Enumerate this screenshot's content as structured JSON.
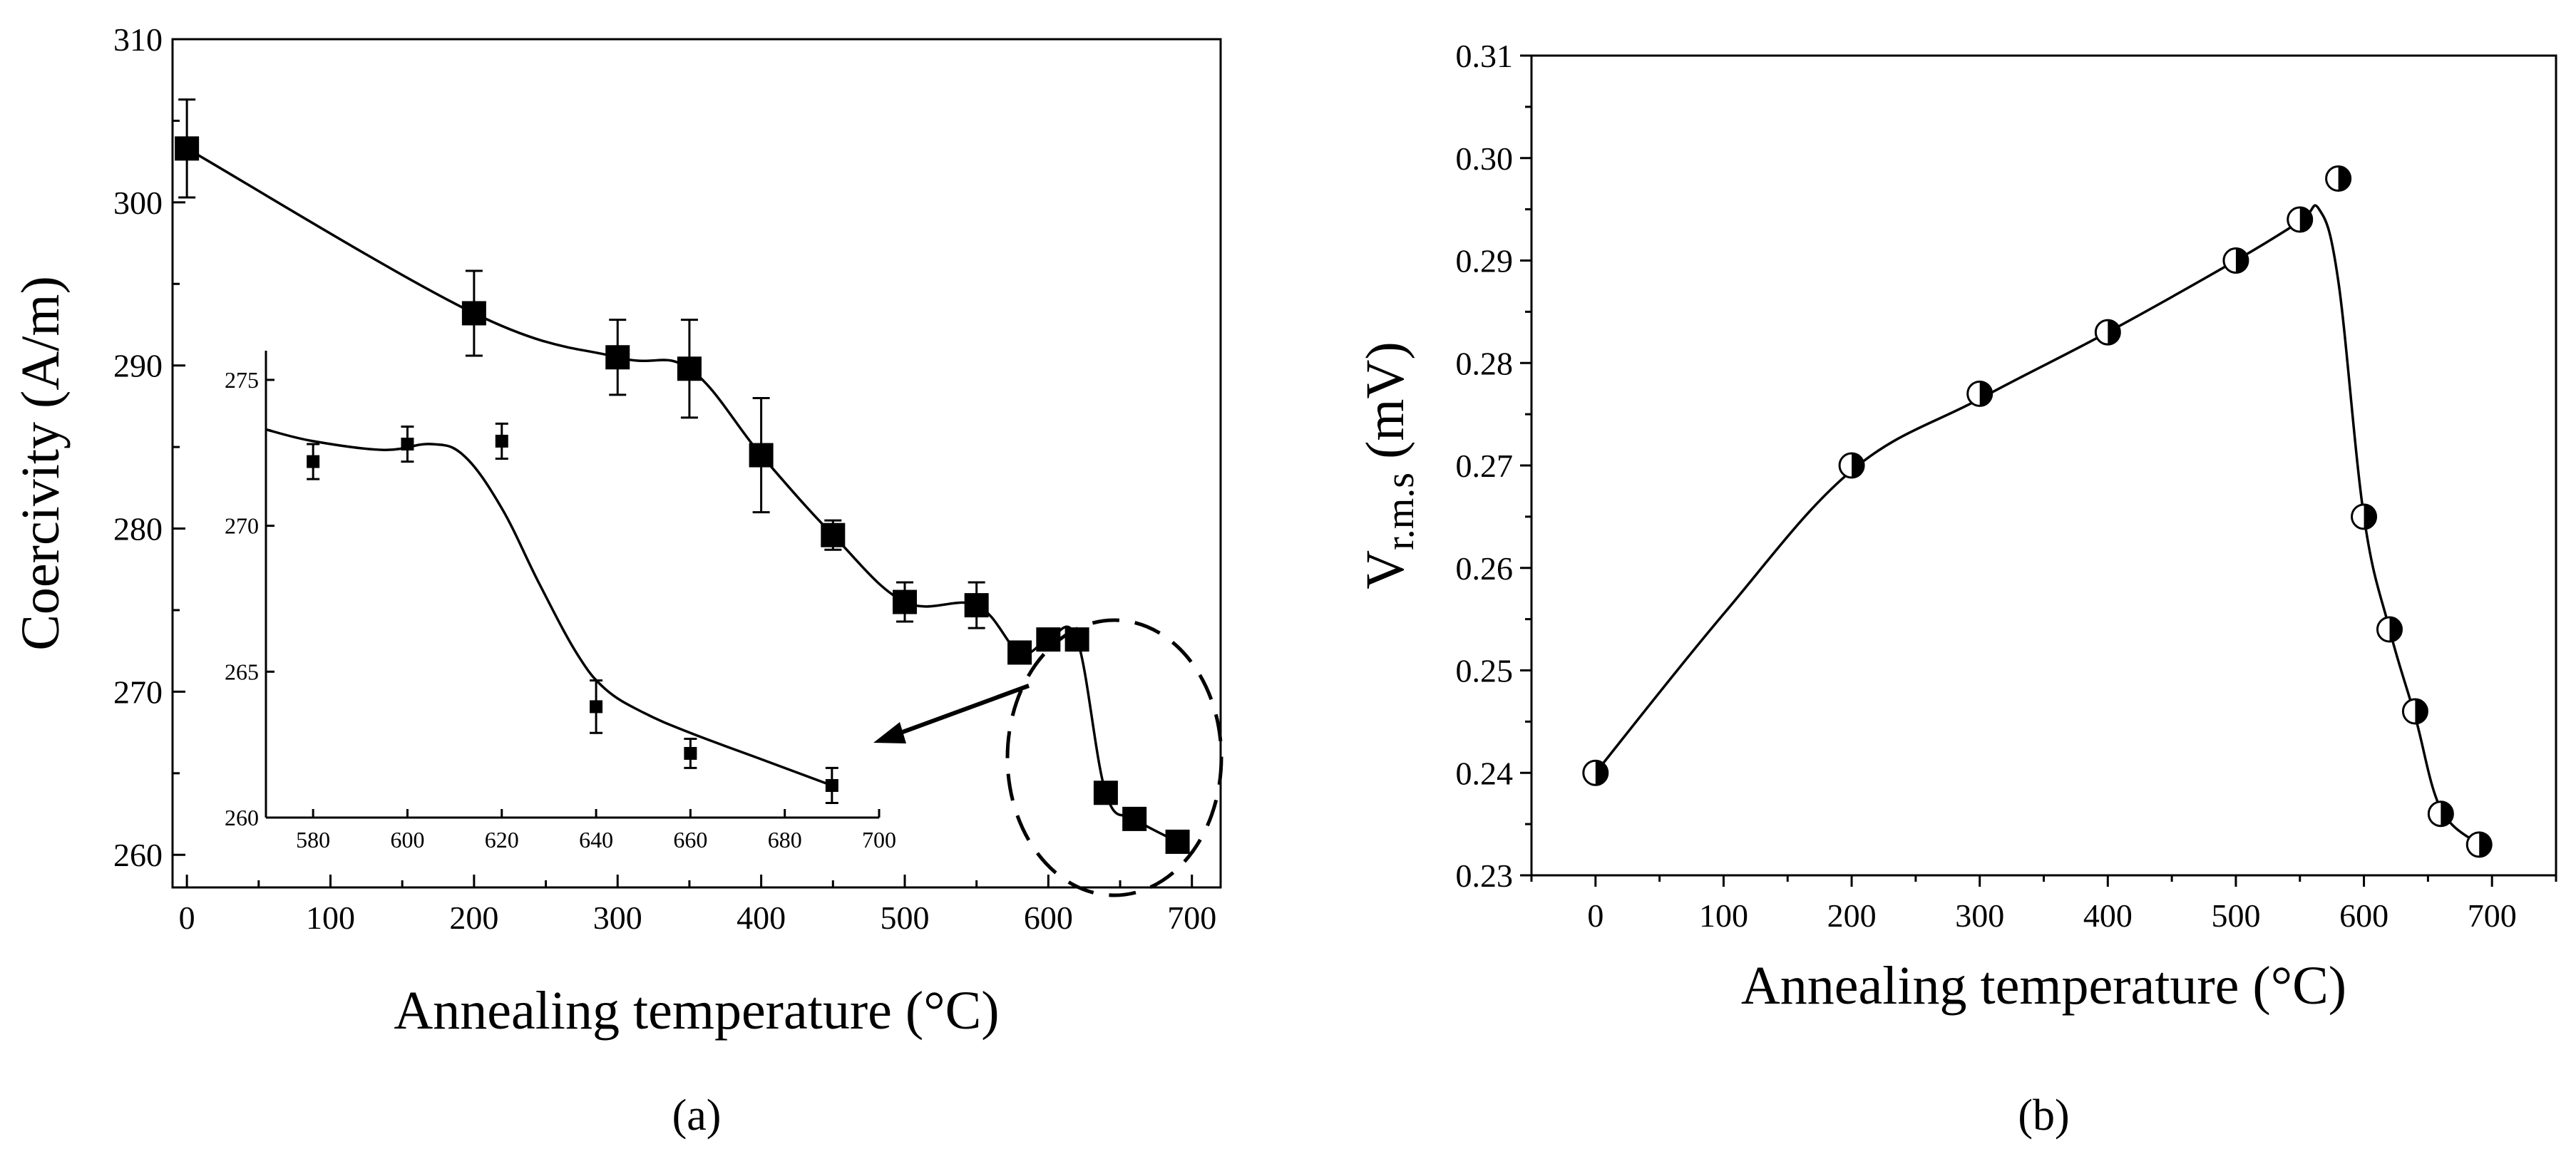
{
  "chart_data": [
    {
      "panel": "a",
      "type": "scatter",
      "panel_label": {
        "open": "(",
        "letter": "a",
        "close": ")"
      },
      "xlabel": "Annealing temperature (°C)",
      "ylabel": "Coercivity (A/m)",
      "xlim": [
        -10,
        720
      ],
      "ylim": [
        258,
        310
      ],
      "xticks": [
        0,
        100,
        200,
        300,
        400,
        500,
        600,
        700
      ],
      "yticks": [
        260,
        270,
        280,
        290,
        300,
        310
      ],
      "marker": "filled-square",
      "series": [
        {
          "name": "Coercivity",
          "x": [
            0,
            200,
            300,
            350,
            400,
            450,
            500,
            550,
            580,
            600,
            620,
            640,
            660,
            690
          ],
          "y": [
            303.3,
            293.2,
            290.5,
            289.8,
            284.5,
            279.6,
            275.5,
            275.3,
            272.4,
            273.2,
            273.2,
            263.8,
            262.2,
            260.8
          ],
          "error": [
            3.0,
            2.6,
            2.3,
            3.0,
            3.5,
            0.9,
            1.2,
            1.4,
            0,
            0,
            0,
            0,
            0,
            0
          ]
        }
      ],
      "annotations": [
        "dashed circle around 640–690 °C points",
        "arrow pointing to inset"
      ],
      "inset": {
        "type": "scatter",
        "xlim": [
          570,
          700
        ],
        "ylim": [
          260,
          276
        ],
        "xticks": [
          580,
          600,
          620,
          640,
          660,
          680,
          700
        ],
        "yticks": [
          260,
          265,
          270,
          275
        ],
        "x": [
          580,
          600,
          620,
          640,
          660,
          690
        ],
        "y": [
          272.2,
          272.8,
          272.9,
          263.8,
          262.2,
          261.1
        ],
        "error": [
          0.6,
          0.6,
          0.6,
          0.9,
          0.5,
          0.6
        ]
      }
    },
    {
      "panel": "b",
      "type": "scatter",
      "panel_label": {
        "open": "(",
        "letter": "b",
        "close": ")"
      },
      "xlabel": "Annealing temperature (°C)",
      "ylabel": "Vr.m.s (mV)",
      "ylabel_main": "V",
      "ylabel_sub": "r.m.s",
      "ylabel_unit": " (mV)",
      "xlim": [
        -50,
        750
      ],
      "ylim": [
        0.23,
        0.31
      ],
      "xticks": [
        0,
        100,
        200,
        300,
        400,
        500,
        600,
        700
      ],
      "yticks": [
        0.23,
        0.24,
        0.25,
        0.26,
        0.27,
        0.28,
        0.29,
        0.3,
        0.31
      ],
      "ytick_labels": [
        "0.23",
        "0.24",
        "0.25",
        "0.26",
        "0.27",
        "0.28",
        "0.29",
        "0.30",
        "0.31"
      ],
      "marker": "half-filled-circle",
      "series": [
        {
          "name": "Vr.m.s",
          "x": [
            0,
            200,
            300,
            400,
            500,
            550,
            580,
            600,
            620,
            640,
            660,
            690
          ],
          "y": [
            0.24,
            0.27,
            0.277,
            0.283,
            0.29,
            0.294,
            0.298,
            0.265,
            0.254,
            0.246,
            0.236,
            0.233
          ]
        }
      ]
    }
  ]
}
